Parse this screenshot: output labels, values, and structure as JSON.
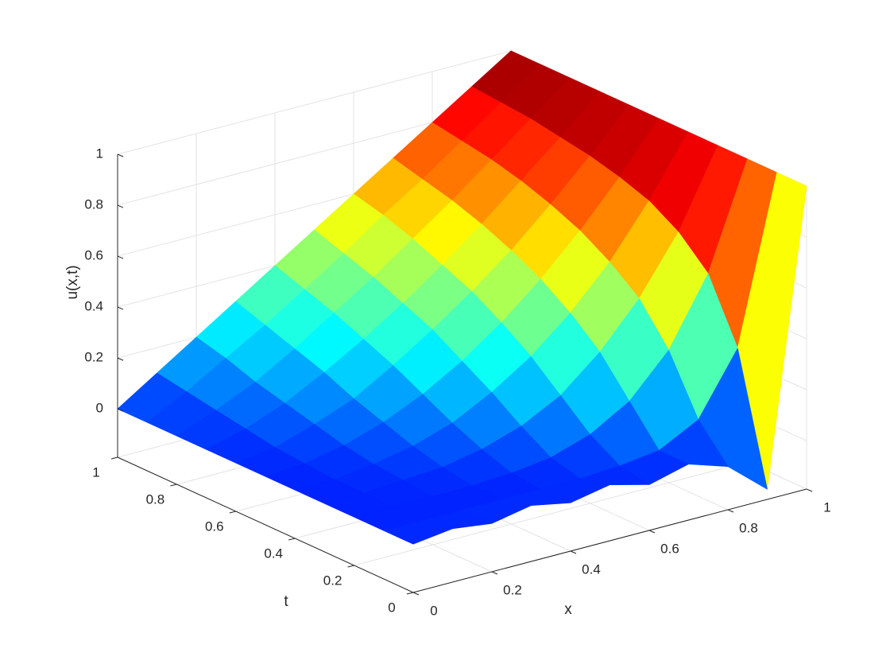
{
  "chart_data": {
    "type": "surface",
    "xlabel": "x",
    "ylabel": "t",
    "zlabel": "u(x,t)",
    "colormap": "jet",
    "grid": true,
    "x": [
      0,
      0.1,
      0.2,
      0.3,
      0.4,
      0.5,
      0.6,
      0.7,
      0.8,
      0.9,
      1
    ],
    "y": [
      0,
      0.1,
      0.2,
      0.3,
      0.4,
      0.5,
      0.6,
      0.7,
      0.8,
      0.9,
      1
    ],
    "z": [
      [
        0,
        0.02,
        0,
        0.03,
        0,
        0.03,
        -0.01,
        0.03,
        -0.02,
        -0.15,
        1
      ],
      [
        0,
        0,
        0,
        0,
        0,
        0,
        0.01,
        0.03,
        0.11,
        0.35,
        1
      ],
      [
        0,
        0,
        0,
        0,
        0.01,
        0.03,
        0.08,
        0.17,
        0.33,
        0.59,
        1
      ],
      [
        0,
        0,
        0.01,
        0.02,
        0.05,
        0.1,
        0.18,
        0.31,
        0.48,
        0.7,
        1
      ],
      [
        0,
        0,
        0.02,
        0.05,
        0.1,
        0.18,
        0.28,
        0.41,
        0.57,
        0.77,
        1
      ],
      [
        0,
        0.01,
        0.04,
        0.09,
        0.16,
        0.25,
        0.36,
        0.49,
        0.64,
        0.81,
        1
      ],
      [
        0,
        0.02,
        0.07,
        0.13,
        0.22,
        0.32,
        0.43,
        0.55,
        0.69,
        0.84,
        1
      ],
      [
        0,
        0.04,
        0.1,
        0.18,
        0.27,
        0.37,
        0.48,
        0.6,
        0.73,
        0.86,
        1
      ],
      [
        0,
        0.06,
        0.13,
        0.22,
        0.32,
        0.42,
        0.53,
        0.64,
        0.76,
        0.88,
        1
      ],
      [
        0,
        0.08,
        0.17,
        0.26,
        0.36,
        0.46,
        0.57,
        0.67,
        0.78,
        0.89,
        1
      ],
      [
        0,
        0.1,
        0.2,
        0.3,
        0.4,
        0.5,
        0.6,
        0.7,
        0.8,
        0.9,
        1
      ]
    ],
    "xlim": [
      0,
      1
    ],
    "ylim": [
      0,
      1
    ],
    "zlim": [
      -0.19,
      1
    ],
    "xticks": [
      0,
      0.2,
      0.4,
      0.6,
      0.8,
      1
    ],
    "yticks": [
      0,
      0.2,
      0.4,
      0.6,
      0.8,
      1
    ],
    "zticks": [
      0,
      0.2,
      0.4,
      0.6,
      0.8,
      1
    ]
  }
}
